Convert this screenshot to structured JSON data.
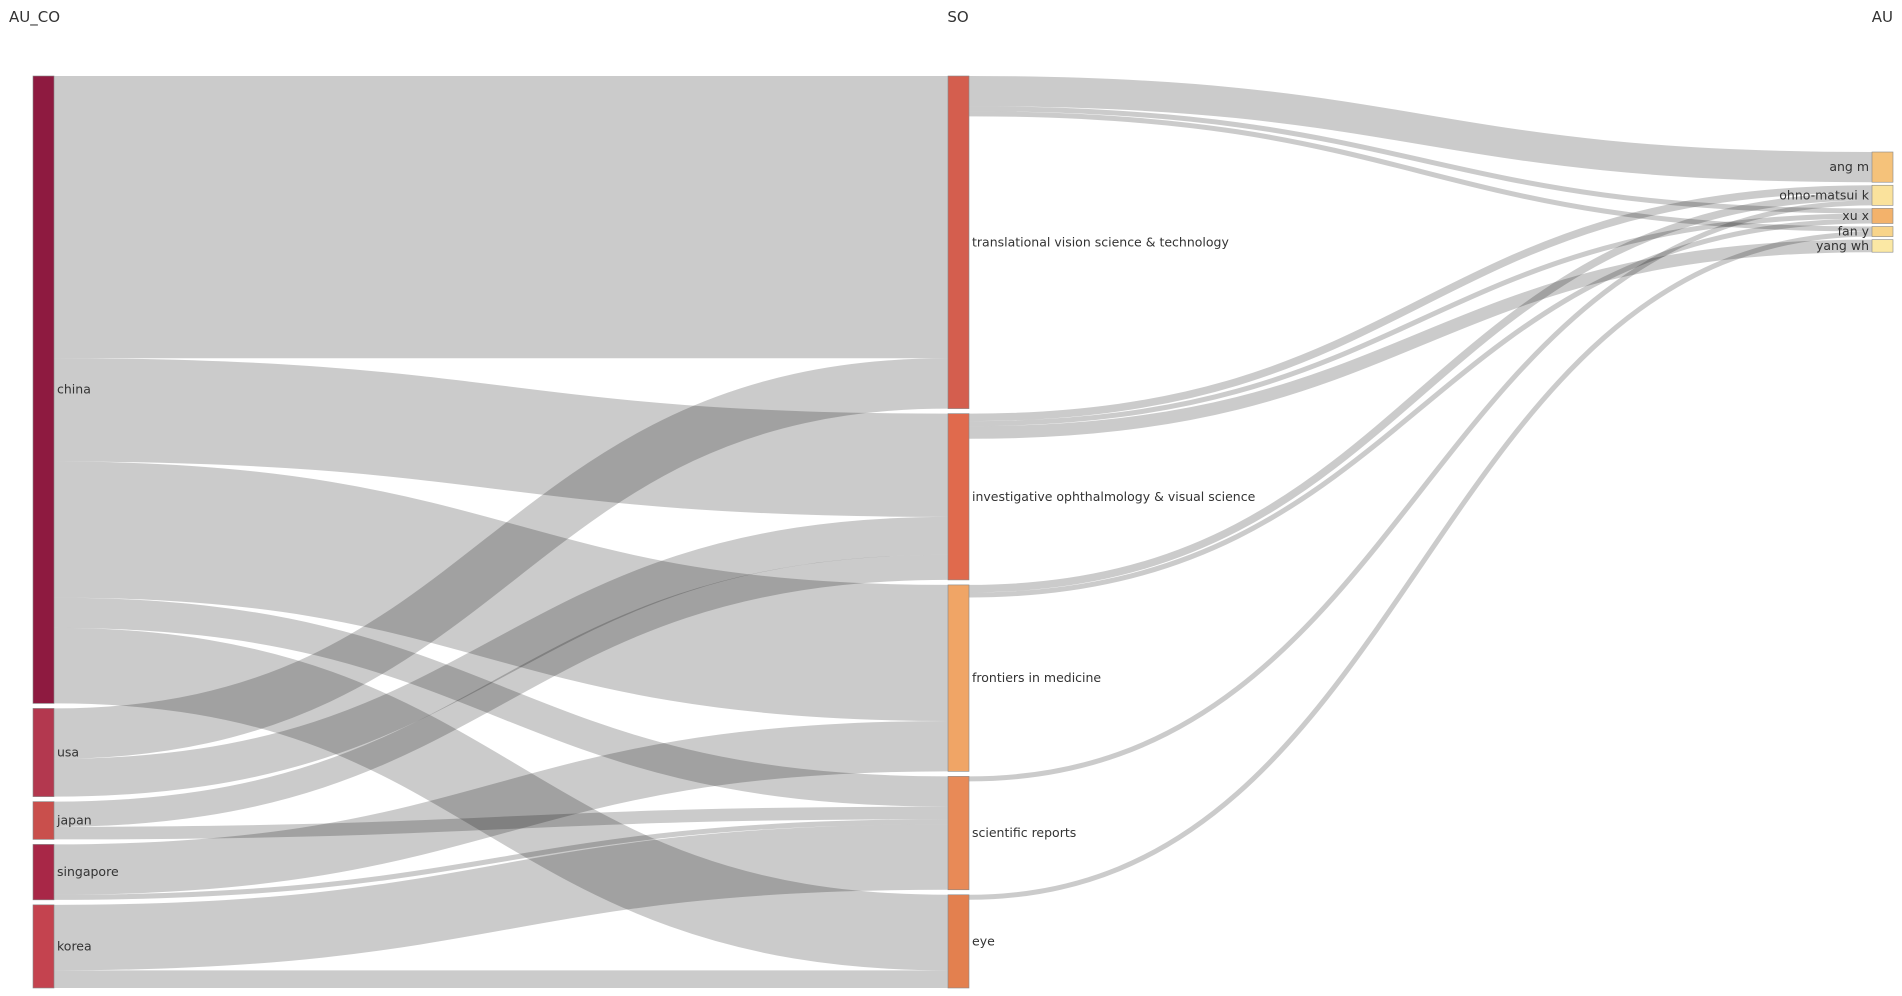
{
  "chart_data": {
    "type": "sankey",
    "columns": [
      {
        "key": "AU_CO",
        "title": "AU_CO"
      },
      {
        "key": "SO",
        "title": "SO"
      },
      {
        "key": "AU",
        "title": "AU"
      }
    ],
    "nodes": [
      {
        "id": "china",
        "label": "china",
        "column": 0,
        "color": "#8E1A40"
      },
      {
        "id": "usa",
        "label": "usa",
        "column": 0,
        "color": "#B3384F"
      },
      {
        "id": "japan",
        "label": "japan",
        "column": 0,
        "color": "#C94F4C"
      },
      {
        "id": "singapore",
        "label": "singapore",
        "column": 0,
        "color": "#A82747"
      },
      {
        "id": "korea",
        "label": "korea",
        "column": 0,
        "color": "#C4434F"
      },
      {
        "id": "tvst",
        "label": "translational vision science & technology",
        "column": 1,
        "color": "#D45E4E"
      },
      {
        "id": "iovs",
        "label": "investigative ophthalmology & visual science",
        "column": 1,
        "color": "#E06A4D"
      },
      {
        "id": "fim",
        "label": "frontiers in medicine",
        "column": 1,
        "color": "#F0A566"
      },
      {
        "id": "sr",
        "label": "scientific reports",
        "column": 1,
        "color": "#E88A57"
      },
      {
        "id": "eye",
        "label": "eye",
        "column": 1,
        "color": "#E3804F"
      },
      {
        "id": "angm",
        "label": "ang m",
        "column": 2,
        "color": "#F5C27A"
      },
      {
        "id": "ohno",
        "label": "ohno-matsui k",
        "column": 2,
        "color": "#FAE29C"
      },
      {
        "id": "xux",
        "label": "xu x",
        "column": 2,
        "color": "#F3B26B"
      },
      {
        "id": "fany",
        "label": "fan y",
        "column": 2,
        "color": "#F8D48A"
      },
      {
        "id": "yangwh",
        "label": "yang wh",
        "column": 2,
        "color": "#FBE8A4"
      }
    ],
    "links": [
      {
        "source": "china",
        "target": "tvst",
        "value": 112
      },
      {
        "source": "china",
        "target": "iovs",
        "value": 41
      },
      {
        "source": "china",
        "target": "fim",
        "value": 54
      },
      {
        "source": "china",
        "target": "sr",
        "value": 12
      },
      {
        "source": "china",
        "target": "eye",
        "value": 30
      },
      {
        "source": "usa",
        "target": "tvst",
        "value": 20
      },
      {
        "source": "usa",
        "target": "iovs",
        "value": 15
      },
      {
        "source": "japan",
        "target": "iovs",
        "value": 10
      },
      {
        "source": "japan",
        "target": "sr",
        "value": 5
      },
      {
        "source": "singapore",
        "target": "fim",
        "value": 20
      },
      {
        "source": "singapore",
        "target": "sr",
        "value": 2
      },
      {
        "source": "korea",
        "target": "sr",
        "value": 26
      },
      {
        "source": "korea",
        "target": "eye",
        "value": 7
      },
      {
        "source": "tvst",
        "target": "angm",
        "value": 12
      },
      {
        "source": "tvst",
        "target": "xux",
        "value": 2
      },
      {
        "source": "tvst",
        "target": "fany",
        "value": 2
      },
      {
        "source": "iovs",
        "target": "ohno",
        "value": 3
      },
      {
        "source": "iovs",
        "target": "xux",
        "value": 2
      },
      {
        "source": "iovs",
        "target": "yangwh",
        "value": 5
      },
      {
        "source": "fim",
        "target": "ohno",
        "value": 3
      },
      {
        "source": "fim",
        "target": "xux",
        "value": 2
      },
      {
        "source": "sr",
        "target": "ohno",
        "value": 2
      },
      {
        "source": "eye",
        "target": "fany",
        "value": 2
      }
    ],
    "link_color": "#A9A9A9"
  }
}
